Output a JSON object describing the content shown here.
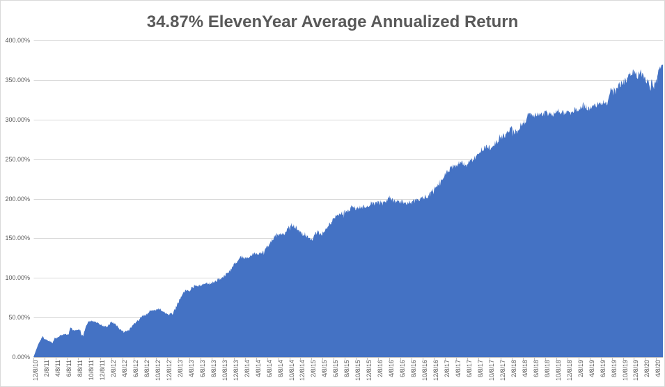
{
  "chart_data": {
    "type": "area",
    "title": "34.87% ElevenYear Average Annualized Return",
    "xlabel": "",
    "ylabel": "",
    "legend": "none",
    "grid": "horizontal",
    "y_min": 0,
    "y_max": 400,
    "y_step": 50,
    "y_tick_labels": [
      "0.00%",
      "50.00%",
      "100.00%",
      "150.00%",
      "200.00%",
      "250.00%",
      "300.00%",
      "350.00%",
      "400.00%"
    ],
    "x_tick_labels": [
      "12/8/10",
      "2/8/11",
      "4/8/11",
      "6/8/11",
      "8/8/11",
      "10/8/11",
      "12/8/11",
      "2/8/12",
      "4/8/12",
      "6/8/12",
      "8/8/12",
      "10/8/12",
      "12/8/12",
      "2/8/13",
      "4/8/13",
      "6/8/13",
      "8/8/13",
      "10/8/13",
      "12/8/13",
      "2/8/14",
      "4/8/14",
      "6/8/14",
      "8/8/14",
      "10/8/14",
      "12/8/14",
      "2/8/15",
      "4/8/15",
      "6/8/15",
      "8/8/15",
      "10/8/15",
      "12/8/15",
      "2/8/16",
      "4/8/16",
      "6/8/16",
      "8/8/16",
      "10/8/16",
      "12/8/16",
      "2/8/17",
      "4/8/17",
      "6/8/17",
      "8/8/17",
      "10/8/17",
      "12/8/17",
      "2/8/18",
      "4/8/18",
      "6/8/18",
      "8/8/18",
      "10/8/18",
      "12/8/18",
      "2/8/19",
      "4/8/19",
      "6/8/19",
      "8/8/19",
      "10/8/19",
      "12/8/19",
      "2/8/20",
      "4/8/20"
    ],
    "x_months_max": 113.2,
    "style": {
      "area_color": "#4472C4",
      "gridline_color": "#D9D9D9",
      "axis_color": "#BFBFBF",
      "label_color": "#595959",
      "title_color": "#595959",
      "background": "#FFFFFF",
      "border_color": "#D9D9D9"
    },
    "series": [
      {
        "unit": "percent_cumulative_return",
        "points": [
          [
            0,
            0.5
          ],
          [
            0.4,
            8
          ],
          [
            0.8,
            16
          ],
          [
            1.2,
            21
          ],
          [
            1.6,
            26
          ],
          [
            2.1,
            22
          ],
          [
            2.5,
            21
          ],
          [
            2.9,
            19.5
          ],
          [
            3.4,
            18
          ],
          [
            3.8,
            23
          ],
          [
            4.1,
            25
          ],
          [
            4.6,
            26
          ],
          [
            5,
            28
          ],
          [
            5.4,
            29
          ],
          [
            5.9,
            28
          ],
          [
            6.3,
            29
          ],
          [
            6.6,
            37
          ],
          [
            7.1,
            34
          ],
          [
            7.5,
            34
          ],
          [
            7.9,
            35
          ],
          [
            8.4,
            33.5
          ],
          [
            8.6,
            28
          ],
          [
            8.9,
            27
          ],
          [
            9.3,
            36
          ],
          [
            9.8,
            44
          ],
          [
            10.4,
            46
          ],
          [
            11.3,
            44
          ],
          [
            12.3,
            40
          ],
          [
            13.2,
            38
          ],
          [
            14,
            45
          ],
          [
            14.8,
            41
          ],
          [
            15.5,
            35
          ],
          [
            16.3,
            31
          ],
          [
            17.1,
            34
          ],
          [
            17.8,
            40
          ],
          [
            18.6,
            45
          ],
          [
            19.4,
            51
          ],
          [
            20.2,
            53
          ],
          [
            20.9,
            58
          ],
          [
            21.8,
            59
          ],
          [
            22.6,
            61
          ],
          [
            23.4,
            57
          ],
          [
            24.3,
            54
          ],
          [
            25.1,
            56
          ],
          [
            25.8,
            66
          ],
          [
            26.6,
            77
          ],
          [
            27.3,
            85
          ],
          [
            28.1,
            84
          ],
          [
            28.8,
            91
          ],
          [
            29.7,
            90
          ],
          [
            30.6,
            92
          ],
          [
            31.5,
            93
          ],
          [
            32.4,
            94
          ],
          [
            33.1,
            98
          ],
          [
            33.9,
            100
          ],
          [
            34.6,
            104
          ],
          [
            35.4,
            110
          ],
          [
            36.1,
            117
          ],
          [
            36.9,
            124
          ],
          [
            37.6,
            127
          ],
          [
            38.4,
            125
          ],
          [
            39.1,
            129
          ],
          [
            39.9,
            131
          ],
          [
            40.6,
            130
          ],
          [
            41.4,
            134
          ],
          [
            42.1,
            140
          ],
          [
            42.8,
            146
          ],
          [
            43.3,
            152
          ],
          [
            43.9,
            154
          ],
          [
            44.5,
            157
          ],
          [
            45.1,
            156
          ],
          [
            45.8,
            163
          ],
          [
            46.4,
            167
          ],
          [
            47,
            165
          ],
          [
            47.6,
            161
          ],
          [
            48.3,
            156
          ],
          [
            48.9,
            153
          ],
          [
            49.5,
            151
          ],
          [
            50,
            148
          ],
          [
            50.5,
            154
          ],
          [
            51.1,
            158
          ],
          [
            51.8,
            155
          ],
          [
            52.4,
            161
          ],
          [
            53,
            166
          ],
          [
            53.7,
            172
          ],
          [
            54.3,
            177
          ],
          [
            54.9,
            180
          ],
          [
            55.5,
            182
          ],
          [
            56.2,
            184
          ],
          [
            56.8,
            186
          ],
          [
            57.4,
            191
          ],
          [
            57.9,
            188
          ],
          [
            58.6,
            189
          ],
          [
            59.2,
            190
          ],
          [
            59.8,
            191
          ],
          [
            60.4,
            193
          ],
          [
            60.9,
            195
          ],
          [
            61.4,
            194
          ],
          [
            62.1,
            195
          ],
          [
            62.7,
            194
          ],
          [
            63.3,
            195
          ],
          [
            63.9,
            203
          ],
          [
            64.4,
            198
          ],
          [
            65.1,
            197
          ],
          [
            65.8,
            197
          ],
          [
            66.5,
            196
          ],
          [
            67.1,
            195
          ],
          [
            67.7,
            196
          ],
          [
            68.5,
            197
          ],
          [
            69.2,
            199
          ],
          [
            70,
            201
          ],
          [
            70.8,
            203
          ],
          [
            71.5,
            208
          ],
          [
            72.7,
            218
          ],
          [
            74,
            231
          ],
          [
            75.2,
            240
          ],
          [
            76.1,
            243
          ],
          [
            76.7,
            246
          ],
          [
            77.5,
            244
          ],
          [
            78.1,
            246
          ],
          [
            79.1,
            250
          ],
          [
            79.7,
            256
          ],
          [
            80.4,
            262
          ],
          [
            81.5,
            266
          ],
          [
            82.1,
            264
          ],
          [
            82.8,
            270
          ],
          [
            83.4,
            272
          ],
          [
            84,
            276
          ],
          [
            84.6,
            280
          ],
          [
            85.3,
            283
          ],
          [
            85.9,
            289
          ],
          [
            86.4,
            283
          ],
          [
            87,
            286
          ],
          [
            87.6,
            292
          ],
          [
            88.3,
            297
          ],
          [
            88.6,
            300
          ],
          [
            89,
            306
          ],
          [
            89.7,
            307
          ],
          [
            90.3,
            306
          ],
          [
            90.9,
            307
          ],
          [
            91.5,
            307
          ],
          [
            92.2,
            308
          ],
          [
            92.8,
            309
          ],
          [
            93.4,
            306
          ],
          [
            94,
            312
          ],
          [
            94.7,
            309
          ],
          [
            95,
            311
          ],
          [
            95.5,
            309
          ],
          [
            96.2,
            307
          ],
          [
            96.8,
            311
          ],
          [
            97.4,
            314
          ],
          [
            98.1,
            314
          ],
          [
            98.7,
            315
          ],
          [
            99.3,
            317
          ],
          [
            99.9,
            315
          ],
          [
            100.6,
            317
          ],
          [
            101.2,
            318
          ],
          [
            101.8,
            319
          ],
          [
            102.4,
            321
          ],
          [
            103.1,
            322
          ],
          [
            103.4,
            325
          ],
          [
            103.8,
            339
          ],
          [
            104.3,
            337
          ],
          [
            105,
            342
          ],
          [
            105.6,
            345
          ],
          [
            106.2,
            348
          ],
          [
            106.8,
            352
          ],
          [
            107.5,
            357
          ],
          [
            108,
            361
          ],
          [
            108.3,
            357
          ],
          [
            108.7,
            356
          ],
          [
            109.2,
            360
          ],
          [
            109.7,
            355
          ],
          [
            110.2,
            349
          ],
          [
            110.6,
            346
          ],
          [
            111,
            340
          ],
          [
            111.2,
            350
          ],
          [
            111.5,
            337
          ],
          [
            111.7,
            346
          ],
          [
            112.1,
            350
          ],
          [
            112.3,
            358
          ],
          [
            112.6,
            364
          ],
          [
            112.8,
            367
          ],
          [
            113.2,
            367
          ]
        ]
      }
    ]
  }
}
